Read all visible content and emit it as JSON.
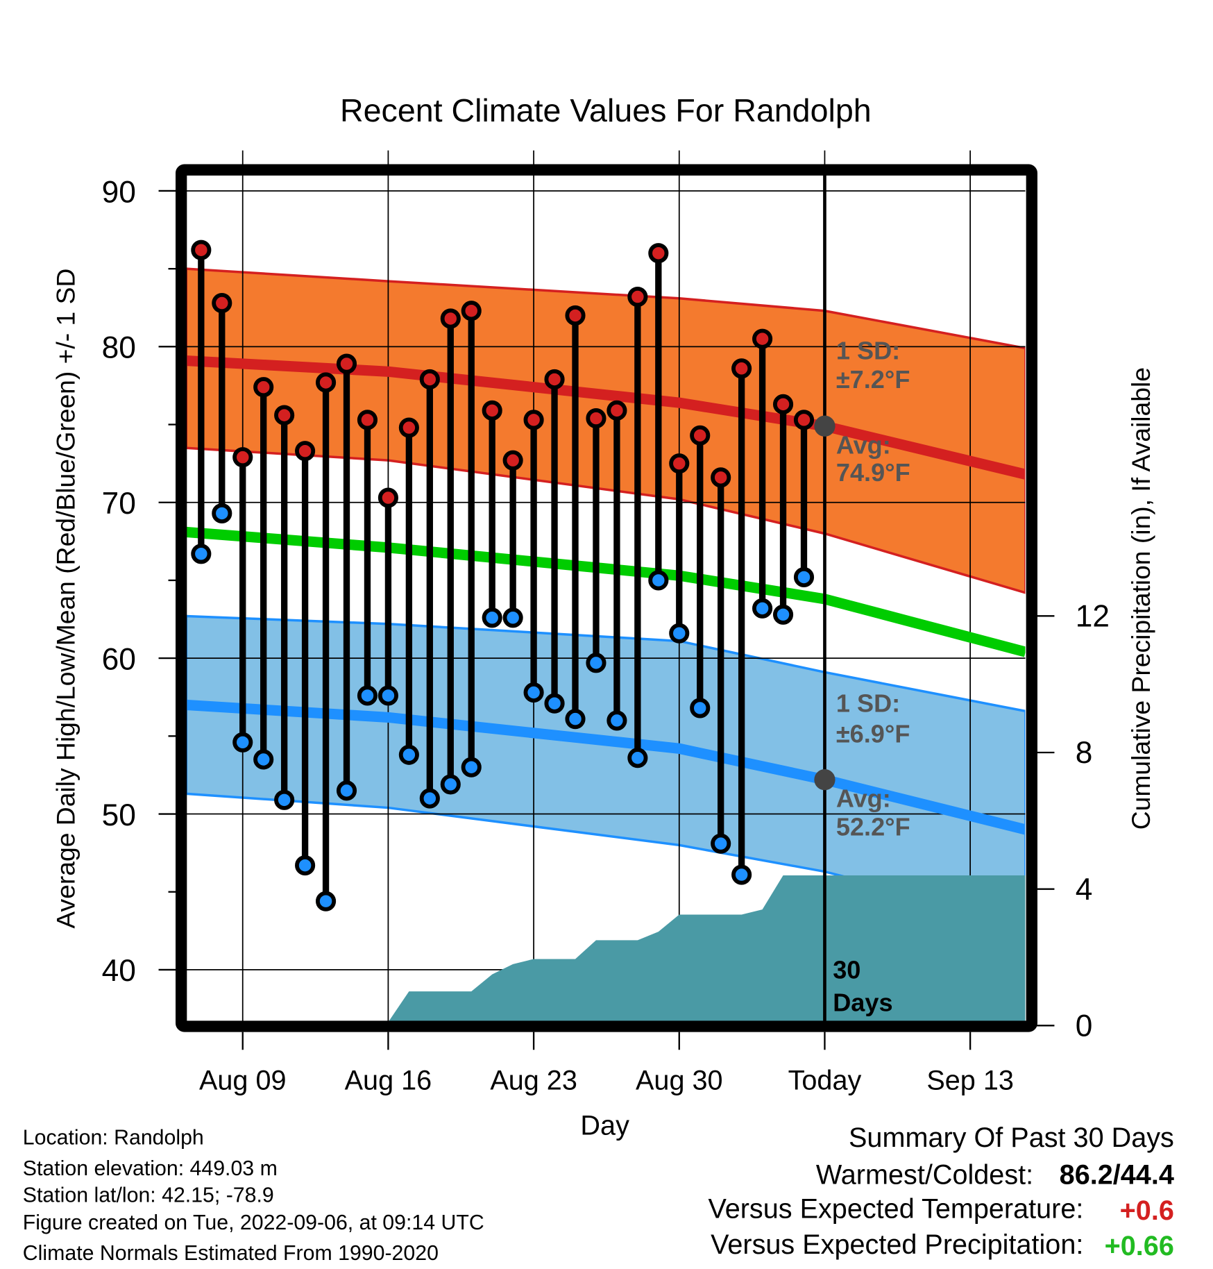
{
  "chart_data": {
    "type": "line",
    "title": "Recent Climate Values For Randolph",
    "xlabel": "Day",
    "ylabel": "Average Daily High/Low/Mean (Red/Blue/Green) +/- 1 SD",
    "y2label": "Cumulative Precipitation (in), If Available",
    "ylim": [
      37,
      92
    ],
    "y2lim": [
      0,
      22
    ],
    "yticks": [
      "90",
      "80",
      "70",
      "60",
      "50",
      "40"
    ],
    "y2ticks": [
      "12",
      "8",
      "4",
      "0"
    ],
    "xticks": [
      "Aug 09",
      "Aug 16",
      "Aug 23",
      "Aug 30",
      "Today",
      "Sep 13"
    ],
    "xtick_day_index": [
      2,
      9,
      16,
      23,
      30,
      37
    ],
    "x_range_day_index": [
      -0.72,
      39.66
    ],
    "dates": [
      "Aug 07",
      "Aug 08",
      "Aug 09",
      "Aug 10",
      "Aug 11",
      "Aug 12",
      "Aug 13",
      "Aug 14",
      "Aug 15",
      "Aug 16",
      "Aug 17",
      "Aug 18",
      "Aug 19",
      "Aug 20",
      "Aug 21",
      "Aug 22",
      "Aug 23",
      "Aug 24",
      "Aug 25",
      "Aug 26",
      "Aug 27",
      "Aug 28",
      "Aug 29",
      "Aug 30",
      "Aug 31",
      "Sep 01",
      "Sep 02",
      "Sep 03",
      "Sep 04",
      "Sep 05"
    ],
    "series": [
      {
        "name": "Daily High",
        "color": "#d42020",
        "values": [
          86.2,
          82.8,
          72.9,
          77.4,
          75.6,
          73.3,
          77.7,
          78.9,
          75.3,
          70.3,
          74.8,
          77.9,
          81.8,
          82.3,
          75.9,
          72.7,
          75.3,
          77.9,
          82.0,
          75.4,
          75.9,
          83.2,
          86.0,
          72.5,
          74.3,
          71.6,
          78.6,
          80.5,
          76.3,
          75.3
        ]
      },
      {
        "name": "Daily Low",
        "color": "#1e90ff",
        "values": [
          66.7,
          69.3,
          54.6,
          53.5,
          50.9,
          46.7,
          44.4,
          51.5,
          57.6,
          57.6,
          53.8,
          51.0,
          51.9,
          53.0,
          62.6,
          62.6,
          57.8,
          57.1,
          56.1,
          59.7,
          56.0,
          53.6,
          65.0,
          61.6,
          56.8,
          48.1,
          46.1,
          63.2,
          62.8,
          65.2
        ]
      },
      {
        "name": "Cumulative Precipitation",
        "color": "#4a9aa5",
        "values": [
          0,
          0,
          0,
          0,
          0,
          0,
          0,
          0,
          0,
          0.1,
          1.0,
          1.0,
          1.0,
          1.0,
          1.5,
          1.8,
          1.95,
          1.95,
          1.95,
          2.5,
          2.5,
          2.5,
          2.75,
          3.25,
          3.25,
          3.25,
          3.25,
          3.4,
          4.4,
          4.4
        ]
      }
    ],
    "normals": {
      "x": [
        -0.72,
        9,
        23,
        30,
        39.66
      ],
      "high_upper": [
        85.0,
        84.2,
        83.1,
        82.3,
        79.9
      ],
      "high_avg": [
        79.1,
        78.4,
        76.4,
        74.9,
        71.8
      ],
      "high_lower": [
        73.5,
        72.7,
        70.2,
        68.0,
        64.2
      ],
      "mean": [
        68.1,
        67.1,
        65.3,
        63.8,
        60.4
      ],
      "low_upper": [
        62.7,
        62.2,
        61.1,
        59.1,
        56.6
      ],
      "low_avg": [
        57.0,
        56.2,
        54.2,
        52.2,
        49.0
      ],
      "low_lower": [
        51.3,
        50.4,
        48.0,
        46.3,
        43.0
      ]
    },
    "colors": {
      "high_band": "#f47a2e",
      "high_line": "#d42020",
      "mean_line": "#00cc00",
      "low_band": "#82c0e6",
      "low_line": "#1e90ff",
      "precip": "#4a9aa5",
      "annot": "#555555"
    },
    "annotations": {
      "high_sd_label": "1 SD:",
      "high_sd_value": "±7.2°F",
      "high_avg_label": "Avg:",
      "high_avg_value": "74.9°F",
      "low_sd_label": "1 SD:",
      "low_sd_value": "±6.9°F",
      "low_avg_label": "Avg:",
      "low_avg_value": "52.2°F",
      "days_num": "30",
      "days_word": "Days"
    },
    "legend": "none"
  },
  "footer": {
    "location": "Location: Randolph",
    "elevation": "Station elevation: 449.03 m",
    "latlon": "Station lat/lon: 42.15; -78.9",
    "created": "Figure created on Tue, 2022-09-06, at 09:14 UTC",
    "normals": "Climate Normals Estimated From 1990-2020"
  },
  "summary": {
    "title": "Summary Of Past 30 Days",
    "warm_cold_label": "Warmest/Coldest:",
    "warm_cold_value": "86.2/44.4",
    "temp_label": "Versus Expected Temperature:",
    "temp_value": "+0.6",
    "temp_color": "#d42020",
    "precip_label": "Versus Expected Precipitation:",
    "precip_value": "+0.66",
    "precip_color": "#22bb22"
  }
}
